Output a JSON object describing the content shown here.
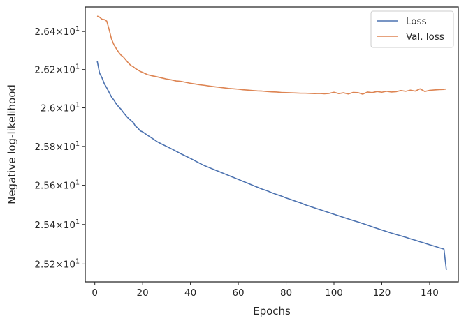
{
  "chart_data": {
    "type": "line",
    "title": "",
    "xlabel": "Epochs",
    "ylabel": "Negative log-likelihood",
    "xlim": [
      -4,
      152
    ],
    "ylim": [
      25.11,
      26.53
    ],
    "yscale": "log",
    "grid": false,
    "legend_position": "top-right",
    "x_ticks": [
      0,
      20,
      40,
      60,
      80,
      100,
      120,
      140
    ],
    "x_tick_labels": [
      "0",
      "20",
      "40",
      "60",
      "80",
      "100",
      "120",
      "140"
    ],
    "y_ticks": [
      25.2,
      25.4,
      25.6,
      25.8,
      26.0,
      26.2,
      26.4
    ],
    "y_tick_labels": [
      {
        "mantissa": "2.52",
        "exp": "1"
      },
      {
        "mantissa": "2.54",
        "exp": "1"
      },
      {
        "mantissa": "2.56",
        "exp": "1"
      },
      {
        "mantissa": "2.58",
        "exp": "1"
      },
      {
        "mantissa": "2.6",
        "exp": "1"
      },
      {
        "mantissa": "2.62",
        "exp": "1"
      },
      {
        "mantissa": "2.64",
        "exp": "1"
      }
    ],
    "series": [
      {
        "name": "Loss",
        "color": "#4c72b0",
        "x": [
          1,
          2,
          3,
          4,
          5,
          6,
          7,
          8,
          9,
          10,
          11,
          12,
          13,
          14,
          15,
          16,
          17,
          18,
          19,
          20,
          22,
          24,
          26,
          28,
          30,
          32,
          34,
          36,
          38,
          40,
          42,
          44,
          46,
          48,
          50,
          52,
          54,
          56,
          58,
          60,
          62,
          64,
          66,
          68,
          70,
          72,
          74,
          76,
          78,
          80,
          82,
          84,
          86,
          88,
          90,
          92,
          94,
          96,
          98,
          100,
          102,
          104,
          106,
          108,
          110,
          112,
          114,
          116,
          118,
          120,
          122,
          124,
          126,
          128,
          130,
          132,
          134,
          136,
          138,
          140,
          142,
          144,
          146,
          147
        ],
        "values": [
          26.245,
          26.181,
          26.157,
          26.125,
          26.104,
          26.08,
          26.056,
          26.04,
          26.02,
          26.005,
          25.992,
          25.975,
          25.96,
          25.946,
          25.935,
          25.925,
          25.905,
          25.895,
          25.88,
          25.875,
          25.858,
          25.842,
          25.825,
          25.812,
          25.8,
          25.788,
          25.775,
          25.762,
          25.75,
          25.738,
          25.725,
          25.712,
          25.7,
          25.69,
          25.68,
          25.67,
          25.66,
          25.65,
          25.64,
          25.63,
          25.62,
          25.61,
          25.6,
          25.59,
          25.58,
          25.572,
          25.562,
          25.553,
          25.545,
          25.535,
          25.527,
          25.518,
          25.51,
          25.5,
          25.492,
          25.484,
          25.476,
          25.468,
          25.46,
          25.452,
          25.444,
          25.436,
          25.428,
          25.42,
          25.413,
          25.405,
          25.397,
          25.388,
          25.38,
          25.372,
          25.364,
          25.356,
          25.349,
          25.342,
          25.335,
          25.327,
          25.32,
          25.312,
          25.305,
          25.297,
          25.29,
          25.282,
          25.275,
          25.17
        ]
      },
      {
        "name": "Val. loss",
        "color": "#dd8452",
        "x": [
          1,
          2,
          3,
          4,
          5,
          6,
          7,
          8,
          9,
          10,
          11,
          12,
          13,
          14,
          15,
          16,
          17,
          18,
          19,
          20,
          22,
          24,
          26,
          28,
          30,
          32,
          34,
          36,
          38,
          40,
          42,
          44,
          46,
          48,
          50,
          52,
          54,
          56,
          58,
          60,
          62,
          64,
          66,
          68,
          70,
          72,
          74,
          76,
          78,
          80,
          82,
          84,
          86,
          88,
          90,
          92,
          94,
          96,
          98,
          100,
          102,
          104,
          106,
          108,
          110,
          112,
          114,
          116,
          118,
          120,
          122,
          124,
          126,
          128,
          130,
          132,
          134,
          136,
          138,
          140,
          142,
          144,
          146,
          147
        ],
        "values": [
          26.482,
          26.476,
          26.465,
          26.463,
          26.455,
          26.41,
          26.36,
          26.33,
          26.31,
          26.29,
          26.275,
          26.265,
          26.25,
          26.235,
          26.222,
          26.215,
          26.205,
          26.198,
          26.19,
          26.185,
          26.173,
          26.167,
          26.162,
          26.156,
          26.15,
          26.146,
          26.14,
          26.138,
          26.133,
          26.128,
          26.124,
          26.12,
          26.117,
          26.113,
          26.11,
          26.107,
          26.104,
          26.101,
          26.099,
          26.097,
          26.094,
          26.092,
          26.09,
          26.088,
          26.087,
          26.085,
          26.083,
          26.082,
          26.08,
          26.079,
          26.078,
          26.077,
          26.076,
          26.076,
          26.075,
          26.074,
          26.075,
          26.073,
          26.075,
          26.081,
          26.074,
          26.078,
          26.072,
          26.08,
          26.079,
          26.071,
          26.082,
          26.079,
          26.085,
          26.081,
          26.086,
          26.082,
          26.084,
          26.09,
          26.086,
          26.092,
          26.087,
          26.099,
          26.085,
          26.091,
          26.093,
          26.095,
          26.096,
          26.098
        ]
      }
    ]
  }
}
